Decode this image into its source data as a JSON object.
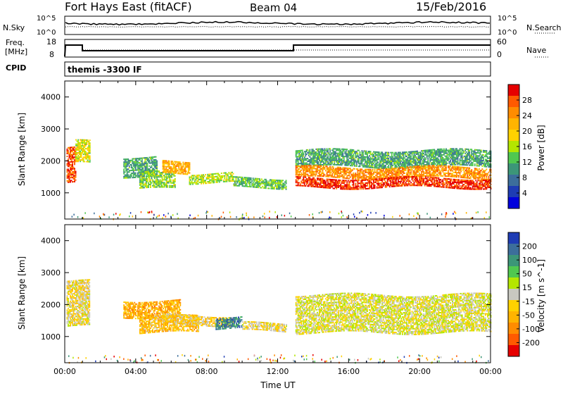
{
  "header": {
    "title": "Fort Hays East (fitACF)",
    "beam": "Beam 04",
    "date": "15/Feb/2016"
  },
  "noise_panel": {
    "left_label": "N.Sky",
    "right_label": "N.Search",
    "left_ticks": [
      "10^5",
      "10^0"
    ],
    "right_ticks": [
      "10^5",
      "10^0"
    ]
  },
  "freq_panel": {
    "left_label_1": "Freq.",
    "left_label_2": "[MHz]",
    "right_label": "Nave",
    "left_ticks": [
      "18",
      "8"
    ],
    "right_ticks": [
      "60",
      "0"
    ]
  },
  "cpid_panel": {
    "label": "CPID",
    "program": "themis -3300 IF"
  },
  "power_colorbar": {
    "label": "Power [dB]",
    "ticks": [
      "28",
      "24",
      "20",
      "16",
      "12",
      "8",
      "4"
    ],
    "colors": [
      "#e60000",
      "#ff5a00",
      "#ff8c00",
      "#ffb400",
      "#ffd200",
      "#b4e600",
      "#50c850",
      "#3c9678",
      "#3c6e9b",
      "#1e3cb4",
      "#0000dc"
    ]
  },
  "velocity_colorbar": {
    "label": "Velocity [m s^-1]",
    "ticks": [
      "200",
      "100",
      "50",
      "15",
      "-15",
      "-50",
      "-100",
      "-200"
    ],
    "colors": [
      "#1e3cb4",
      "#3c6e9b",
      "#3c9678",
      "#50c850",
      "#b4e600",
      "#c8c8c0",
      "#ffd200",
      "#ffb400",
      "#ff8c00",
      "#ff5a00",
      "#e60000"
    ]
  },
  "chart_data": [
    {
      "type": "heatmap",
      "name": "power",
      "ylabel": "Slant Range [km]",
      "y_ticks": [
        "1000",
        "2000",
        "3000",
        "4000"
      ],
      "ylim": [
        180,
        4500
      ],
      "xlim": [
        0,
        24
      ],
      "bands": [
        {
          "t0": 0.1,
          "t1": 0.6,
          "r0": 1300,
          "r1": 2400,
          "level": 0.85
        },
        {
          "t0": 0.6,
          "t1": 1.4,
          "r0": 1900,
          "r1": 2600,
          "level": 0.55
        },
        {
          "t0": 3.3,
          "t1": 5.2,
          "r0": 1500,
          "r1": 2100,
          "level": 0.35
        },
        {
          "t0": 4.2,
          "t1": 6.2,
          "r0": 1100,
          "r1": 1600,
          "level": 0.45
        },
        {
          "t0": 5.5,
          "t1": 7.0,
          "r0": 1600,
          "r1": 2000,
          "level": 0.7
        },
        {
          "t0": 7.0,
          "t1": 9.5,
          "r0": 1300,
          "r1": 1600,
          "level": 0.5
        },
        {
          "t0": 9.5,
          "t1": 12.5,
          "r0": 1150,
          "r1": 1450,
          "level": 0.4
        },
        {
          "t0": 13.0,
          "t1": 24.0,
          "r0": 1800,
          "r1": 2300,
          "level": 0.35
        },
        {
          "t0": 13.0,
          "t1": 24.0,
          "r0": 1450,
          "r1": 1800,
          "level": 0.75
        },
        {
          "t0": 13.0,
          "t1": 24.0,
          "r0": 1150,
          "r1": 1450,
          "level": 0.92
        }
      ]
    },
    {
      "type": "heatmap",
      "name": "velocity",
      "ylabel": "Slant Range [km]",
      "y_ticks": [
        "1000",
        "2000",
        "3000",
        "4000"
      ],
      "ylim": [
        180,
        4500
      ],
      "xlim": [
        0,
        24
      ],
      "xlabel": "Time UT",
      "x_ticks": [
        "00:00",
        "04:00",
        "08:00",
        "12:00",
        "16:00",
        "20:00",
        "00:00"
      ],
      "bands": [
        {
          "t0": 0.1,
          "t1": 1.4,
          "r0": 1300,
          "r1": 2700,
          "level": 0.45
        },
        {
          "t0": 3.3,
          "t1": 6.5,
          "r0": 1600,
          "r1": 2100,
          "level": 0.3
        },
        {
          "t0": 4.2,
          "t1": 7.5,
          "r0": 1100,
          "r1": 1600,
          "level": 0.35
        },
        {
          "t0": 5.5,
          "t1": 9.5,
          "r0": 1350,
          "r1": 1650,
          "level": 0.4
        },
        {
          "t0": 8.5,
          "t1": 10.0,
          "r0": 1250,
          "r1": 1600,
          "level": 0.82
        },
        {
          "t0": 10.0,
          "t1": 12.5,
          "r0": 1150,
          "r1": 1400,
          "level": 0.45
        },
        {
          "t0": 13.0,
          "t1": 24.0,
          "r0": 1100,
          "r1": 2300,
          "level": 0.5
        }
      ]
    }
  ]
}
